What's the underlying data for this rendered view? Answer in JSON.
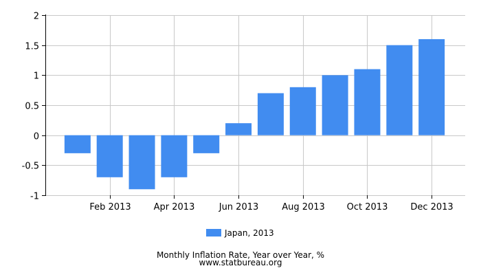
{
  "chart_data": {
    "type": "bar",
    "categories": [
      "Jan 2013",
      "Feb 2013",
      "Mar 2013",
      "Apr 2013",
      "May 2013",
      "Jun 2013",
      "Jul 2013",
      "Aug 2013",
      "Sep 2013",
      "Oct 2013",
      "Nov 2013",
      "Dec 2013"
    ],
    "x_tick_labels": [
      "Feb 2013",
      "Apr 2013",
      "Jun 2013",
      "Aug 2013",
      "Oct 2013",
      "Dec 2013"
    ],
    "series": [
      {
        "name": "Japan, 2013",
        "color": "#418cf0",
        "values": [
          -0.3,
          -0.7,
          -0.9,
          -0.7,
          -0.3,
          0.2,
          0.7,
          0.8,
          1.0,
          1.1,
          1.5,
          1.6
        ]
      }
    ],
    "y_ticks": [
      2,
      1.5,
      1,
      0.5,
      0,
      -0.5,
      -1
    ],
    "y_tick_labels": [
      "2",
      "1.5",
      "1",
      "0.5",
      "0",
      "-0.5",
      "-1"
    ],
    "ylim": [
      -1,
      2
    ],
    "grid": true,
    "legend_position": "bottom-center",
    "caption": "Monthly Inflation Rate, Year over Year, %",
    "source": "www.statbureau.org"
  }
}
